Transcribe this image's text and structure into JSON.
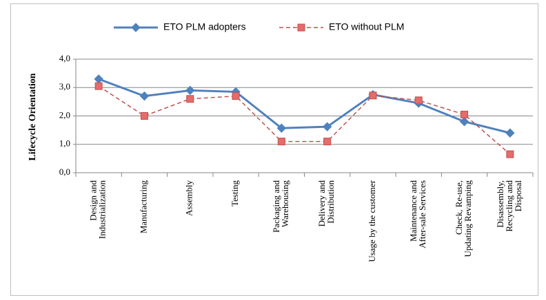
{
  "chart_data": {
    "type": "line",
    "y_label": "Lifecycle Orientation",
    "categories": [
      "Design and\nIndustrialization",
      "Manufacturing",
      "Assembly",
      "Testing",
      "Packaging and\nWarehousing",
      "Delivery and\nDistribution",
      "Usage by the customer",
      "Maintenance and\nAfter-sale Services",
      "Check, Re-use,\nUpdating  Revamping",
      "Disassembly,\nRecycling and\nDisposal"
    ],
    "series": [
      {
        "name": "ETO PLM adopters",
        "color": "#4f81bd",
        "marker": "diamond",
        "dashed": false,
        "values": [
          3.3,
          2.7,
          2.9,
          2.85,
          1.57,
          1.62,
          2.75,
          2.45,
          1.8,
          1.4
        ]
      },
      {
        "name": "ETO without PLM",
        "color": "#c0504d",
        "marker": "square",
        "dashed": true,
        "values": [
          3.05,
          2.0,
          2.6,
          2.7,
          1.1,
          1.1,
          2.72,
          2.55,
          2.05,
          0.65
        ]
      }
    ],
    "ylim": [
      0,
      4
    ],
    "yticks": [
      {
        "value": 0,
        "label": "0,0"
      },
      {
        "value": 1,
        "label": "1,0"
      },
      {
        "value": 2,
        "label": "2,0"
      },
      {
        "value": 3,
        "label": "3,0"
      },
      {
        "value": 4,
        "label": "4,0"
      }
    ],
    "grid": true,
    "legend": "top"
  }
}
